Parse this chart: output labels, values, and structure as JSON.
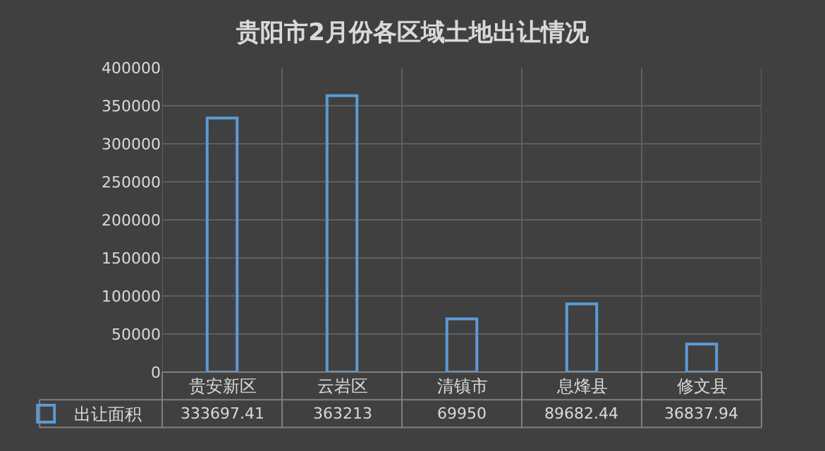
{
  "chart_data": {
    "type": "bar",
    "title": "贵阳市2月份各区域土地出让情况",
    "categories": [
      "贵安新区",
      "云岩区",
      "清镇市",
      "息烽县",
      "修文县"
    ],
    "series": [
      {
        "name": "出让面积",
        "color": "#5b9bd5",
        "values": [
          333697.41,
          363213,
          69950,
          89682.44,
          36837.94
        ]
      }
    ],
    "ylim": [
      0,
      400000
    ],
    "yticks": [
      0,
      50000,
      100000,
      150000,
      200000,
      250000,
      300000,
      350000,
      400000
    ],
    "grid": true,
    "data_labels": true,
    "legend": "bottom"
  }
}
